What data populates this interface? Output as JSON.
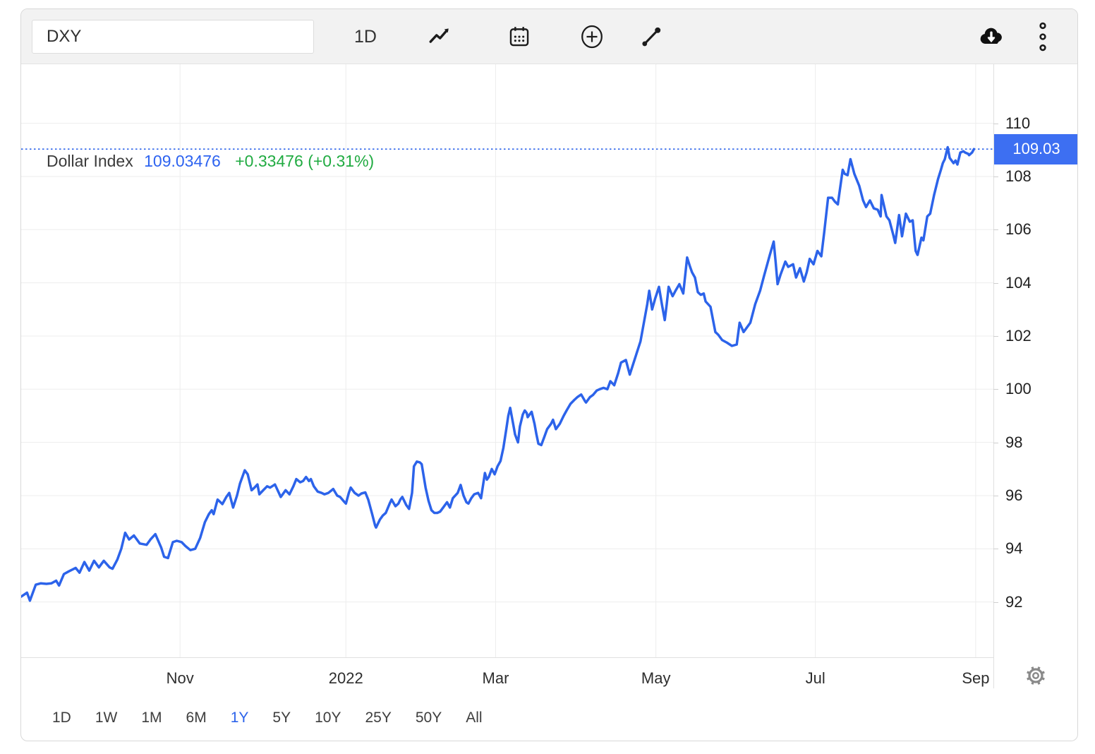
{
  "toolbar": {
    "symbol_input": {
      "value": "DXY",
      "placeholder": ""
    },
    "interval_label": "1D",
    "icons": [
      "line-chart",
      "calendar",
      "compare-plus",
      "trendline-tool",
      "cloud-download",
      "kebab-menu"
    ]
  },
  "legend": {
    "name": "Dollar Index",
    "price": "109.03476",
    "change": "+0.33476 (+0.31%)"
  },
  "price_tag": {
    "text": "109.03",
    "value": 109.03
  },
  "ranges": [
    {
      "label": "1D",
      "active": false
    },
    {
      "label": "1W",
      "active": false
    },
    {
      "label": "1M",
      "active": false
    },
    {
      "label": "6M",
      "active": false
    },
    {
      "label": "1Y",
      "active": true
    },
    {
      "label": "5Y",
      "active": false
    },
    {
      "label": "10Y",
      "active": false
    },
    {
      "label": "25Y",
      "active": false
    },
    {
      "label": "50Y",
      "active": false
    },
    {
      "label": "All",
      "active": false
    }
  ],
  "colors": {
    "accent": "#2c63ea",
    "price_tag_bg": "#3d6ff2",
    "legend_price": "#2d63f0",
    "change_green": "#21ab42",
    "grid": "#ededed",
    "axis_line": "#e0e0e0",
    "toolbar_bg": "#f2f2f2",
    "icon": "#1c1c1c",
    "gear": "#8a8a8a"
  },
  "chart_data": {
    "type": "line",
    "title": "Dollar Index",
    "series_name": "Dollar Index (DXY)",
    "current_value": 109.03476,
    "change": "+0.33476",
    "change_pct": "+0.31%",
    "grid": true,
    "ylim": [
      89.92,
      112.22
    ],
    "y_ticks": [
      92,
      94,
      96,
      98,
      100,
      102,
      104,
      106,
      108,
      110
    ],
    "x_ticks": [
      {
        "label": "Nov",
        "t": 0.1634
      },
      {
        "label": "2022",
        "t": 0.334
      },
      {
        "label": "Mar",
        "t": 0.488
      },
      {
        "label": "May",
        "t": 0.6529
      },
      {
        "label": "Jul",
        "t": 0.8169
      },
      {
        "label": "Sep",
        "t": 0.9818
      }
    ],
    "points": [
      [
        0,
        92.2
      ],
      [
        0.006,
        92.35
      ],
      [
        0.009,
        92.05
      ],
      [
        0.015,
        92.65
      ],
      [
        0.02,
        92.7
      ],
      [
        0.026,
        92.68
      ],
      [
        0.031,
        92.7
      ],
      [
        0.036,
        92.8
      ],
      [
        0.039,
        92.62
      ],
      [
        0.044,
        93.05
      ],
      [
        0.049,
        93.15
      ],
      [
        0.056,
        93.28
      ],
      [
        0.06,
        93.1
      ],
      [
        0.065,
        93.5
      ],
      [
        0.07,
        93.18
      ],
      [
        0.075,
        93.55
      ],
      [
        0.08,
        93.3
      ],
      [
        0.085,
        93.55
      ],
      [
        0.091,
        93.3
      ],
      [
        0.094,
        93.25
      ],
      [
        0.099,
        93.6
      ],
      [
        0.103,
        94.0
      ],
      [
        0.107,
        94.6
      ],
      [
        0.111,
        94.35
      ],
      [
        0.116,
        94.5
      ],
      [
        0.122,
        94.2
      ],
      [
        0.129,
        94.15
      ],
      [
        0.133,
        94.35
      ],
      [
        0.138,
        94.55
      ],
      [
        0.144,
        94.05
      ],
      [
        0.147,
        93.7
      ],
      [
        0.151,
        93.65
      ],
      [
        0.156,
        94.25
      ],
      [
        0.16,
        94.3
      ],
      [
        0.165,
        94.25
      ],
      [
        0.169,
        94.1
      ],
      [
        0.174,
        93.95
      ],
      [
        0.179,
        94.0
      ],
      [
        0.184,
        94.4
      ],
      [
        0.189,
        95.0
      ],
      [
        0.193,
        95.3
      ],
      [
        0.196,
        95.45
      ],
      [
        0.198,
        95.3
      ],
      [
        0.202,
        95.85
      ],
      [
        0.205,
        95.75
      ],
      [
        0.207,
        95.68
      ],
      [
        0.211,
        95.95
      ],
      [
        0.214,
        96.1
      ],
      [
        0.218,
        95.55
      ],
      [
        0.222,
        96.0
      ],
      [
        0.225,
        96.45
      ],
      [
        0.23,
        96.95
      ],
      [
        0.233,
        96.8
      ],
      [
        0.237,
        96.2
      ],
      [
        0.24,
        96.3
      ],
      [
        0.243,
        96.42
      ],
      [
        0.245,
        96.05
      ],
      [
        0.249,
        96.2
      ],
      [
        0.253,
        96.35
      ],
      [
        0.256,
        96.3
      ],
      [
        0.261,
        96.42
      ],
      [
        0.267,
        95.95
      ],
      [
        0.27,
        96.1
      ],
      [
        0.272,
        96.2
      ],
      [
        0.276,
        96.05
      ],
      [
        0.28,
        96.35
      ],
      [
        0.283,
        96.62
      ],
      [
        0.287,
        96.5
      ],
      [
        0.29,
        96.55
      ],
      [
        0.293,
        96.7
      ],
      [
        0.296,
        96.55
      ],
      [
        0.298,
        96.62
      ],
      [
        0.301,
        96.35
      ],
      [
        0.305,
        96.15
      ],
      [
        0.309,
        96.1
      ],
      [
        0.312,
        96.05
      ],
      [
        0.316,
        96.1
      ],
      [
        0.321,
        96.25
      ],
      [
        0.325,
        96.0
      ],
      [
        0.328,
        95.95
      ],
      [
        0.332,
        95.78
      ],
      [
        0.334,
        95.7
      ],
      [
        0.337,
        96.1
      ],
      [
        0.339,
        96.3
      ],
      [
        0.343,
        96.1
      ],
      [
        0.347,
        96.0
      ],
      [
        0.35,
        96.08
      ],
      [
        0.354,
        96.12
      ],
      [
        0.357,
        95.85
      ],
      [
        0.361,
        95.3
      ],
      [
        0.364,
        94.88
      ],
      [
        0.365,
        94.8
      ],
      [
        0.369,
        95.1
      ],
      [
        0.372,
        95.25
      ],
      [
        0.375,
        95.35
      ],
      [
        0.379,
        95.7
      ],
      [
        0.381,
        95.85
      ],
      [
        0.385,
        95.6
      ],
      [
        0.388,
        95.7
      ],
      [
        0.39,
        95.85
      ],
      [
        0.392,
        95.95
      ],
      [
        0.396,
        95.65
      ],
      [
        0.399,
        95.5
      ],
      [
        0.402,
        96.1
      ],
      [
        0.404,
        97.1
      ],
      [
        0.407,
        97.28
      ],
      [
        0.41,
        97.25
      ],
      [
        0.412,
        97.18
      ],
      [
        0.416,
        96.3
      ],
      [
        0.419,
        95.8
      ],
      [
        0.422,
        95.45
      ],
      [
        0.425,
        95.35
      ],
      [
        0.428,
        95.35
      ],
      [
        0.431,
        95.4
      ],
      [
        0.434,
        95.55
      ],
      [
        0.438,
        95.75
      ],
      [
        0.441,
        95.55
      ],
      [
        0.444,
        95.9
      ],
      [
        0.449,
        96.1
      ],
      [
        0.452,
        96.4
      ],
      [
        0.455,
        96.0
      ],
      [
        0.458,
        95.75
      ],
      [
        0.46,
        95.7
      ],
      [
        0.463,
        95.9
      ],
      [
        0.466,
        96.05
      ],
      [
        0.47,
        96.1
      ],
      [
        0.473,
        95.9
      ],
      [
        0.477,
        96.85
      ],
      [
        0.479,
        96.6
      ],
      [
        0.481,
        96.7
      ],
      [
        0.484,
        97.0
      ],
      [
        0.487,
        96.8
      ],
      [
        0.49,
        97.1
      ],
      [
        0.493,
        97.3
      ],
      [
        0.496,
        97.8
      ],
      [
        0.499,
        98.5
      ],
      [
        0.501,
        99.0
      ],
      [
        0.503,
        99.3
      ],
      [
        0.506,
        98.7
      ],
      [
        0.508,
        98.3
      ],
      [
        0.511,
        98.0
      ],
      [
        0.513,
        98.6
      ],
      [
        0.516,
        99.05
      ],
      [
        0.518,
        99.2
      ],
      [
        0.52,
        99.1
      ],
      [
        0.521,
        98.95
      ],
      [
        0.524,
        99.1
      ],
      [
        0.525,
        99.15
      ],
      [
        0.528,
        98.7
      ],
      [
        0.53,
        98.3
      ],
      [
        0.532,
        97.95
      ],
      [
        0.535,
        97.9
      ],
      [
        0.538,
        98.2
      ],
      [
        0.541,
        98.5
      ],
      [
        0.545,
        98.7
      ],
      [
        0.547,
        98.85
      ],
      [
        0.55,
        98.5
      ],
      [
        0.554,
        98.7
      ],
      [
        0.558,
        99.0
      ],
      [
        0.561,
        99.2
      ],
      [
        0.565,
        99.45
      ],
      [
        0.569,
        99.6
      ],
      [
        0.572,
        99.7
      ],
      [
        0.576,
        99.8
      ],
      [
        0.58,
        99.55
      ],
      [
        0.581,
        99.5
      ],
      [
        0.585,
        99.7
      ],
      [
        0.588,
        99.78
      ],
      [
        0.592,
        99.95
      ],
      [
        0.595,
        100.0
      ],
      [
        0.599,
        100.05
      ],
      [
        0.603,
        100.0
      ],
      [
        0.606,
        100.3
      ],
      [
        0.61,
        100.15
      ],
      [
        0.614,
        100.6
      ],
      [
        0.617,
        101.0
      ],
      [
        0.622,
        101.1
      ],
      [
        0.626,
        100.55
      ],
      [
        0.63,
        101.0
      ],
      [
        0.633,
        101.35
      ],
      [
        0.637,
        101.8
      ],
      [
        0.64,
        102.4
      ],
      [
        0.644,
        103.2
      ],
      [
        0.646,
        103.7
      ],
      [
        0.649,
        103.0
      ],
      [
        0.652,
        103.4
      ],
      [
        0.656,
        103.85
      ],
      [
        0.659,
        103.2
      ],
      [
        0.662,
        102.6
      ],
      [
        0.664,
        103.2
      ],
      [
        0.666,
        103.85
      ],
      [
        0.67,
        103.5
      ],
      [
        0.673,
        103.7
      ],
      [
        0.677,
        103.95
      ],
      [
        0.681,
        103.6
      ],
      [
        0.685,
        104.95
      ],
      [
        0.688,
        104.6
      ],
      [
        0.69,
        104.4
      ],
      [
        0.693,
        104.2
      ],
      [
        0.696,
        103.65
      ],
      [
        0.699,
        103.55
      ],
      [
        0.702,
        103.6
      ],
      [
        0.704,
        103.3
      ],
      [
        0.709,
        103.1
      ],
      [
        0.714,
        102.15
      ],
      [
        0.717,
        102.05
      ],
      [
        0.721,
        101.85
      ],
      [
        0.726,
        101.75
      ],
      [
        0.731,
        101.63
      ],
      [
        0.736,
        101.68
      ],
      [
        0.739,
        102.5
      ],
      [
        0.743,
        102.15
      ],
      [
        0.746,
        102.3
      ],
      [
        0.75,
        102.5
      ],
      [
        0.755,
        103.2
      ],
      [
        0.76,
        103.7
      ],
      [
        0.764,
        104.25
      ],
      [
        0.77,
        105.05
      ],
      [
        0.774,
        105.55
      ],
      [
        0.776,
        104.8
      ],
      [
        0.778,
        103.95
      ],
      [
        0.781,
        104.3
      ],
      [
        0.784,
        104.6
      ],
      [
        0.786,
        104.8
      ],
      [
        0.789,
        104.6
      ],
      [
        0.794,
        104.7
      ],
      [
        0.797,
        104.2
      ],
      [
        0.801,
        104.55
      ],
      [
        0.805,
        104.05
      ],
      [
        0.808,
        104.4
      ],
      [
        0.811,
        104.9
      ],
      [
        0.815,
        104.7
      ],
      [
        0.819,
        105.2
      ],
      [
        0.823,
        105.0
      ],
      [
        0.826,
        105.9
      ],
      [
        0.83,
        107.2
      ],
      [
        0.834,
        107.2
      ],
      [
        0.837,
        107.05
      ],
      [
        0.84,
        106.95
      ],
      [
        0.845,
        108.25
      ],
      [
        0.847,
        108.1
      ],
      [
        0.85,
        108.05
      ],
      [
        0.853,
        108.65
      ],
      [
        0.857,
        108.1
      ],
      [
        0.862,
        107.65
      ],
      [
        0.866,
        107.1
      ],
      [
        0.869,
        106.85
      ],
      [
        0.873,
        107.1
      ],
      [
        0.877,
        106.8
      ],
      [
        0.881,
        106.75
      ],
      [
        0.884,
        106.5
      ],
      [
        0.885,
        107.3
      ],
      [
        0.89,
        106.5
      ],
      [
        0.893,
        106.35
      ],
      [
        0.897,
        105.8
      ],
      [
        0.899,
        105.5
      ],
      [
        0.903,
        106.55
      ],
      [
        0.906,
        105.75
      ],
      [
        0.91,
        106.6
      ],
      [
        0.914,
        106.3
      ],
      [
        0.917,
        106.35
      ],
      [
        0.92,
        105.2
      ],
      [
        0.922,
        105.05
      ],
      [
        0.926,
        105.7
      ],
      [
        0.928,
        105.6
      ],
      [
        0.932,
        106.5
      ],
      [
        0.935,
        106.6
      ],
      [
        0.939,
        107.3
      ],
      [
        0.943,
        107.9
      ],
      [
        0.946,
        108.25
      ],
      [
        0.948,
        108.5
      ],
      [
        0.95,
        108.65
      ],
      [
        0.953,
        109.1
      ],
      [
        0.955,
        108.7
      ],
      [
        0.959,
        108.5
      ],
      [
        0.961,
        108.6
      ],
      [
        0.963,
        108.45
      ],
      [
        0.966,
        108.9
      ],
      [
        0.969,
        108.95
      ],
      [
        0.971,
        108.9
      ],
      [
        0.974,
        108.85
      ],
      [
        0.975,
        108.8
      ],
      [
        0.978,
        108.9
      ],
      [
        0.98,
        109.03
      ]
    ]
  }
}
